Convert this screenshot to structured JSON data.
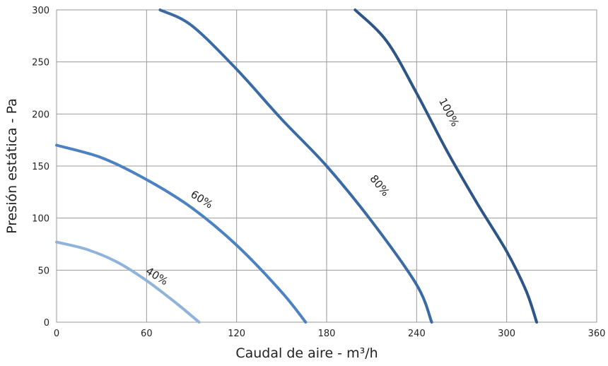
{
  "chart_data": {
    "type": "line",
    "xlabel": "Caudal de aire - m³/h",
    "ylabel": "Presión estática - Pa",
    "xlim": [
      0,
      360
    ],
    "ylim": [
      0,
      300
    ],
    "x_ticks": [
      "0",
      "60",
      "120",
      "180",
      "240",
      "300",
      "360"
    ],
    "y_ticks": [
      "0",
      "50",
      "100",
      "150",
      "200",
      "250",
      "300"
    ],
    "grid": true,
    "series": [
      {
        "name": "40%",
        "color": "#8fb3db",
        "points": [
          [
            0,
            77
          ],
          [
            20,
            70
          ],
          [
            40,
            58
          ],
          [
            60,
            40
          ],
          [
            80,
            18
          ],
          [
            95,
            0
          ]
        ]
      },
      {
        "name": "60%",
        "color": "#4d82c2",
        "points": [
          [
            0,
            170
          ],
          [
            30,
            158
          ],
          [
            60,
            137
          ],
          [
            90,
            110
          ],
          [
            120,
            74
          ],
          [
            150,
            29
          ],
          [
            166,
            0
          ]
        ]
      },
      {
        "name": "80%",
        "color": "#3a6ba5",
        "points": [
          [
            69,
            300
          ],
          [
            90,
            285
          ],
          [
            120,
            243
          ],
          [
            150,
            195
          ],
          [
            180,
            150
          ],
          [
            210,
            97
          ],
          [
            240,
            36
          ],
          [
            250,
            0
          ]
        ]
      },
      {
        "name": "100%",
        "color": "#2e5588",
        "points": [
          [
            199,
            300
          ],
          [
            220,
            270
          ],
          [
            240,
            220
          ],
          [
            260,
            165
          ],
          [
            280,
            115
          ],
          [
            300,
            68
          ],
          [
            313,
            30
          ],
          [
            320,
            0
          ]
        ]
      }
    ]
  }
}
